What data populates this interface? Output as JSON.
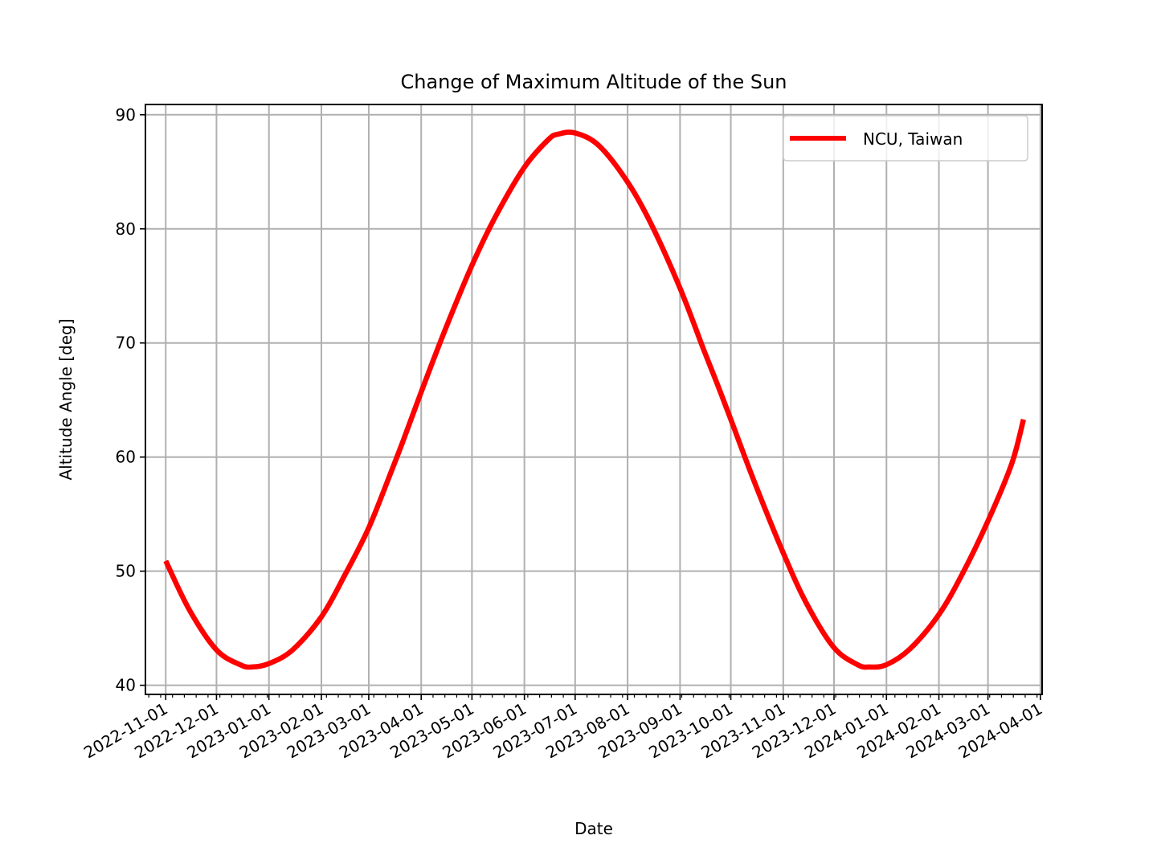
{
  "chart_data": {
    "type": "line",
    "title": "Change of Maximum Altitude of the Sun",
    "xlabel": "Date",
    "ylabel": "Altitude Angle [deg]",
    "xlim": [
      "2022-10-20",
      "2024-04-02"
    ],
    "ylim": [
      39.2,
      90.9
    ],
    "grid": true,
    "legend_position": "top-right",
    "x_ticks": [
      "2022-11-01",
      "2022-12-01",
      "2023-01-01",
      "2023-02-01",
      "2023-03-01",
      "2023-04-01",
      "2023-05-01",
      "2023-06-01",
      "2023-07-01",
      "2023-08-01",
      "2023-09-01",
      "2023-10-01",
      "2023-11-01",
      "2023-12-01",
      "2024-01-01",
      "2024-02-01",
      "2024-03-01",
      "2024-04-01"
    ],
    "y_ticks": [
      40,
      50,
      60,
      70,
      80,
      90
    ],
    "series": [
      {
        "name": "NCU, Taiwan",
        "color": "#ff0000",
        "x": [
          "2022-11-01",
          "2022-11-15",
          "2022-12-01",
          "2022-12-15",
          "2022-12-22",
          "2023-01-01",
          "2023-01-15",
          "2023-02-01",
          "2023-02-15",
          "2023-03-01",
          "2023-03-15",
          "2023-03-21",
          "2023-04-01",
          "2023-04-15",
          "2023-05-01",
          "2023-05-15",
          "2023-06-01",
          "2023-06-15",
          "2023-06-21",
          "2023-07-01",
          "2023-07-15",
          "2023-08-01",
          "2023-08-15",
          "2023-09-01",
          "2023-09-15",
          "2023-09-23",
          "2023-10-01",
          "2023-10-15",
          "2023-11-01",
          "2023-11-15",
          "2023-12-01",
          "2023-12-15",
          "2023-12-22",
          "2024-01-01",
          "2024-01-15",
          "2024-02-01",
          "2024-02-15",
          "2024-03-01",
          "2024-03-15",
          "2024-03-22"
        ],
        "y": [
          50.9,
          46.6,
          43.1,
          41.8,
          41.6,
          41.9,
          43.1,
          46.0,
          49.7,
          53.8,
          59.0,
          61.3,
          65.7,
          71.1,
          76.8,
          81.1,
          85.4,
          87.8,
          88.3,
          88.4,
          87.3,
          84.1,
          80.4,
          74.8,
          69.4,
          66.4,
          63.3,
          57.8,
          51.6,
          47.1,
          43.3,
          41.8,
          41.6,
          41.8,
          43.2,
          46.2,
          49.8,
          54.4,
          59.4,
          63.3
        ]
      }
    ]
  }
}
